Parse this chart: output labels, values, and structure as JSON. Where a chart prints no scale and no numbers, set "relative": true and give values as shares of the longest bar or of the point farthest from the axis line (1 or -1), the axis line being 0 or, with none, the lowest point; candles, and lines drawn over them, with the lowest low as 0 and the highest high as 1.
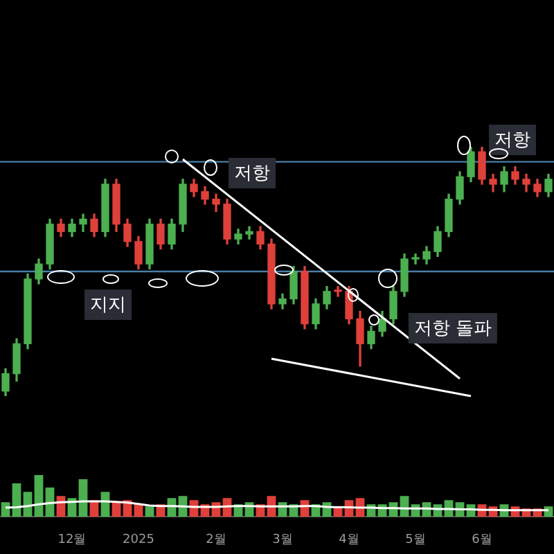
{
  "chart_data": [
    {
      "type": "candlestick",
      "relative": true,
      "tick_labels": false,
      "grid": false,
      "legend": false,
      "categories": [
        null,
        null,
        null,
        null,
        null,
        null,
        null,
        null,
        null,
        null,
        null,
        null,
        null,
        null,
        null,
        null,
        null,
        null,
        null,
        null,
        null,
        null,
        null,
        null,
        null,
        null,
        null,
        null,
        null,
        null,
        null,
        null,
        null,
        null,
        null,
        null,
        null,
        null,
        null,
        null,
        null,
        null,
        null,
        null,
        null,
        null,
        null,
        null,
        null,
        null
      ],
      "ohlc": [
        [
          0.02,
          0.11,
          0,
          0.09
        ],
        [
          0.09,
          0.23,
          0.06,
          0.21
        ],
        [
          0.21,
          0.49,
          0.19,
          0.47
        ],
        [
          0.47,
          0.55,
          0.45,
          0.53
        ],
        [
          0.53,
          0.71,
          0.51,
          0.69
        ],
        [
          0.69,
          0.71,
          0.64,
          0.66
        ],
        [
          0.66,
          0.71,
          0.64,
          0.69
        ],
        [
          0.69,
          0.73,
          0.66,
          0.71
        ],
        [
          0.71,
          0.73,
          0.64,
          0.66
        ],
        [
          0.66,
          0.87,
          0.64,
          0.85
        ],
        [
          0.85,
          0.87,
          0.66,
          0.69
        ],
        [
          0.69,
          0.71,
          0.6,
          0.62
        ],
        [
          0.62,
          0.64,
          0.51,
          0.53
        ],
        [
          0.53,
          0.71,
          0.51,
          0.69
        ],
        [
          0.69,
          0.71,
          0.59,
          0.61
        ],
        [
          0.61,
          0.71,
          0.59,
          0.69
        ],
        [
          0.69,
          0.87,
          0.66,
          0.85
        ],
        [
          0.85,
          0.87,
          0.8,
          0.82
        ],
        [
          0.82,
          0.84,
          0.77,
          0.79
        ],
        [
          0.79,
          0.81,
          0.74,
          0.77
        ],
        [
          0.77,
          0.79,
          0.61,
          0.63
        ],
        [
          0.63,
          0.67,
          0.61,
          0.65
        ],
        [
          0.65,
          0.68,
          0.63,
          0.66
        ],
        [
          0.66,
          0.68,
          0.59,
          0.61
        ],
        [
          0.61,
          0.63,
          0.35,
          0.37
        ],
        [
          0.37,
          0.41,
          0.35,
          0.39
        ],
        [
          0.39,
          0.52,
          0.37,
          0.5
        ],
        [
          0.5,
          0.52,
          0.27,
          0.29
        ],
        [
          0.29,
          0.39,
          0.27,
          0.37
        ],
        [
          0.37,
          0.44,
          0.35,
          0.42
        ],
        [
          0.42,
          0.44,
          0.4,
          0.42
        ],
        [
          0.42,
          0.44,
          0.29,
          0.31
        ],
        [
          0.31,
          0.34,
          0.12,
          0.21
        ],
        [
          0.21,
          0.28,
          0.19,
          0.26
        ],
        [
          0.26,
          0.34,
          0.24,
          0.31
        ],
        [
          0.31,
          0.44,
          0.29,
          0.42
        ],
        [
          0.42,
          0.57,
          0.4,
          0.55
        ],
        [
          0.55,
          0.57,
          0.53,
          0.55
        ],
        [
          0.55,
          0.6,
          0.53,
          0.58
        ],
        [
          0.58,
          0.68,
          0.56,
          0.66
        ],
        [
          0.66,
          0.81,
          0.64,
          0.79
        ],
        [
          0.79,
          0.9,
          0.77,
          0.88
        ],
        [
          0.88,
          1,
          0.86,
          0.98
        ],
        [
          0.98,
          1,
          0.85,
          0.87
        ],
        [
          0.87,
          0.89,
          0.82,
          0.85
        ],
        [
          0.85,
          0.92,
          0.82,
          0.9
        ],
        [
          0.9,
          0.92,
          0.85,
          0.87
        ],
        [
          0.87,
          0.89,
          0.82,
          0.85
        ],
        [
          0.85,
          0.87,
          0.8,
          0.82
        ],
        [
          0.82,
          0.89,
          0.8,
          0.87
        ]
      ],
      "colors": [
        "#4caf50",
        "#4caf50",
        "#4caf50",
        "#4caf50",
        "#4caf50",
        "#e0403a",
        "#4caf50",
        "#4caf50",
        "#e0403a",
        "#4caf50",
        "#e0403a",
        "#e0403a",
        "#e0403a",
        "#4caf50",
        "#e0403a",
        "#4caf50",
        "#4caf50",
        "#e0403a",
        "#e0403a",
        "#e0403a",
        "#e0403a",
        "#4caf50",
        "#4caf50",
        "#e0403a",
        "#e0403a",
        "#4caf50",
        "#4caf50",
        "#e0403a",
        "#4caf50",
        "#4caf50",
        "#e0403a",
        "#e0403a",
        "#e0403a",
        "#4caf50",
        "#4caf50",
        "#4caf50",
        "#4caf50",
        "#4caf50",
        "#4caf50",
        "#4caf50",
        "#4caf50",
        "#4caf50",
        "#4caf50",
        "#e0403a",
        "#e0403a",
        "#4caf50",
        "#e0403a",
        "#e0403a",
        "#e0403a",
        "#4caf50"
      ],
      "series": [
        {
          "type": "line",
          "color": "#ffffff",
          "values": [
            null,
            null,
            null,
            null,
            null,
            null,
            null,
            null,
            null,
            null,
            null,
            null,
            null,
            null,
            null,
            null,
            0.95,
            null,
            null,
            null,
            null,
            null,
            null,
            null,
            null,
            null,
            null,
            null,
            null,
            null,
            null,
            null,
            null,
            null,
            null,
            null,
            null,
            null,
            null,
            null,
            null,
            0.07,
            null,
            null,
            null,
            null,
            null,
            null,
            null,
            null
          ]
        },
        {
          "type": "line",
          "color": "#ffffff",
          "values": [
            null,
            null,
            null,
            null,
            null,
            null,
            null,
            null,
            null,
            null,
            null,
            null,
            null,
            null,
            null,
            null,
            null,
            null,
            null,
            null,
            null,
            null,
            null,
            null,
            0.15,
            null,
            null,
            null,
            null,
            null,
            null,
            null,
            null,
            null,
            null,
            null,
            null,
            null,
            null,
            null,
            null,
            null,
            0,
            null,
            null,
            null,
            null,
            null,
            null,
            null
          ]
        }
      ],
      "ref_lines": [
        {
          "axis": "y",
          "value": 0.94,
          "color": "#4a7fa8"
        },
        {
          "axis": "y",
          "value": 0.5,
          "color": "#4a7fa8"
        }
      ],
      "annotations": [
        "저항",
        "지지",
        "저항 돌파",
        "저항"
      ]
    },
    {
      "type": "bar",
      "relative": true,
      "tick_labels": "x",
      "grid": false,
      "legend": false,
      "categories": [
        null,
        null,
        null,
        null,
        null,
        null,
        "12월",
        null,
        null,
        null,
        null,
        null,
        "2025",
        null,
        null,
        null,
        null,
        null,
        null,
        "2월",
        null,
        null,
        null,
        null,
        null,
        "3월",
        null,
        null,
        null,
        null,
        null,
        "4월",
        null,
        null,
        null,
        null,
        null,
        "5월",
        null,
        null,
        null,
        null,
        null,
        "6월",
        null,
        null,
        null,
        null,
        null,
        null
      ],
      "series": [
        {
          "type": "bar",
          "values": [
            0.35,
            0.8,
            0.6,
            1.0,
            0.7,
            0.5,
            0.45,
            0.9,
            0.4,
            0.6,
            0.35,
            0.4,
            0.3,
            0.25,
            0.3,
            0.45,
            0.5,
            0.4,
            0.3,
            0.35,
            0.45,
            0.3,
            0.35,
            0.3,
            0.5,
            0.35,
            0.3,
            0.4,
            0.3,
            0.35,
            0.25,
            0.4,
            0.45,
            0.3,
            0.3,
            0.35,
            0.5,
            0.3,
            0.35,
            0.3,
            0.4,
            0.35,
            0.3,
            0.3,
            0.25,
            0.3,
            0.25,
            0.2,
            0.2,
            0.25
          ],
          "colors": [
            "#4caf50",
            "#4caf50",
            "#4caf50",
            "#4caf50",
            "#4caf50",
            "#e0403a",
            "#4caf50",
            "#4caf50",
            "#e0403a",
            "#4caf50",
            "#e0403a",
            "#e0403a",
            "#e0403a",
            "#4caf50",
            "#e0403a",
            "#4caf50",
            "#4caf50",
            "#e0403a",
            "#e0403a",
            "#e0403a",
            "#e0403a",
            "#4caf50",
            "#4caf50",
            "#e0403a",
            "#e0403a",
            "#4caf50",
            "#4caf50",
            "#e0403a",
            "#4caf50",
            "#4caf50",
            "#e0403a",
            "#e0403a",
            "#e0403a",
            "#4caf50",
            "#4caf50",
            "#4caf50",
            "#4caf50",
            "#4caf50",
            "#4caf50",
            "#4caf50",
            "#4caf50",
            "#4caf50",
            "#4caf50",
            "#e0403a",
            "#e0403a",
            "#4caf50",
            "#e0403a",
            "#e0403a",
            "#e0403a",
            "#4caf50"
          ]
        },
        {
          "type": "line",
          "color": "#ffffff",
          "values": [
            0.22,
            0.23,
            0.26,
            0.3,
            0.33,
            0.35,
            0.36,
            0.37,
            0.37,
            0.37,
            0.36,
            0.34,
            0.31,
            0.27,
            0.26,
            0.26,
            0.25,
            0.24,
            0.24,
            0.24,
            0.25,
            0.26,
            0.26,
            0.25,
            0.25,
            0.25,
            0.25,
            0.26,
            0.26,
            0.24,
            0.23,
            0.23,
            0.22,
            0.22,
            0.21,
            0.21,
            0.2,
            0.2,
            0.2,
            0.19,
            0.19,
            0.18,
            0.18,
            0.17,
            0.17,
            0.16,
            0.16,
            0.16,
            0.16,
            0.16
          ]
        }
      ]
    }
  ]
}
